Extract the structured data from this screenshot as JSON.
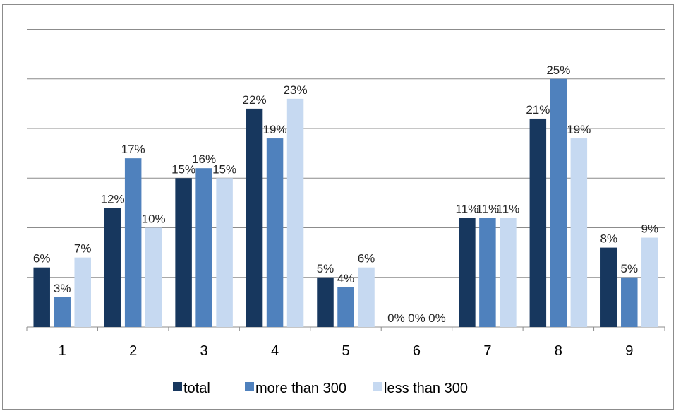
{
  "chart_data": {
    "type": "bar",
    "title": "",
    "xlabel": "",
    "ylabel": "",
    "ylim": [
      0,
      30
    ],
    "grid": true,
    "legend_position": "bottom",
    "categories": [
      "1",
      "2",
      "3",
      "4",
      "5",
      "6",
      "7",
      "8",
      "9"
    ],
    "series": [
      {
        "name": "total",
        "color": "#17375E",
        "values": [
          6,
          12,
          15,
          22,
          5,
          0,
          11,
          21,
          8
        ],
        "labels": [
          "6%",
          "12%",
          "15%",
          "22%",
          "5%",
          "0%",
          "11%",
          "21%",
          "8%"
        ]
      },
      {
        "name": "more than 300",
        "color": "#4F81BD",
        "values": [
          3,
          17,
          16,
          19,
          4,
          0,
          11,
          25,
          5
        ],
        "labels": [
          "3%",
          "17%",
          "16%",
          "19%",
          "4%",
          "0%",
          "11%",
          "25%",
          "5%"
        ]
      },
      {
        "name": "less than 300",
        "color": "#C6D9F1",
        "values": [
          7,
          10,
          15,
          23,
          6,
          0,
          11,
          19,
          9
        ],
        "labels": [
          "7%",
          "10%",
          "15%",
          "23%",
          "6%",
          "0%",
          "11%",
          "19%",
          "9%"
        ]
      }
    ]
  }
}
